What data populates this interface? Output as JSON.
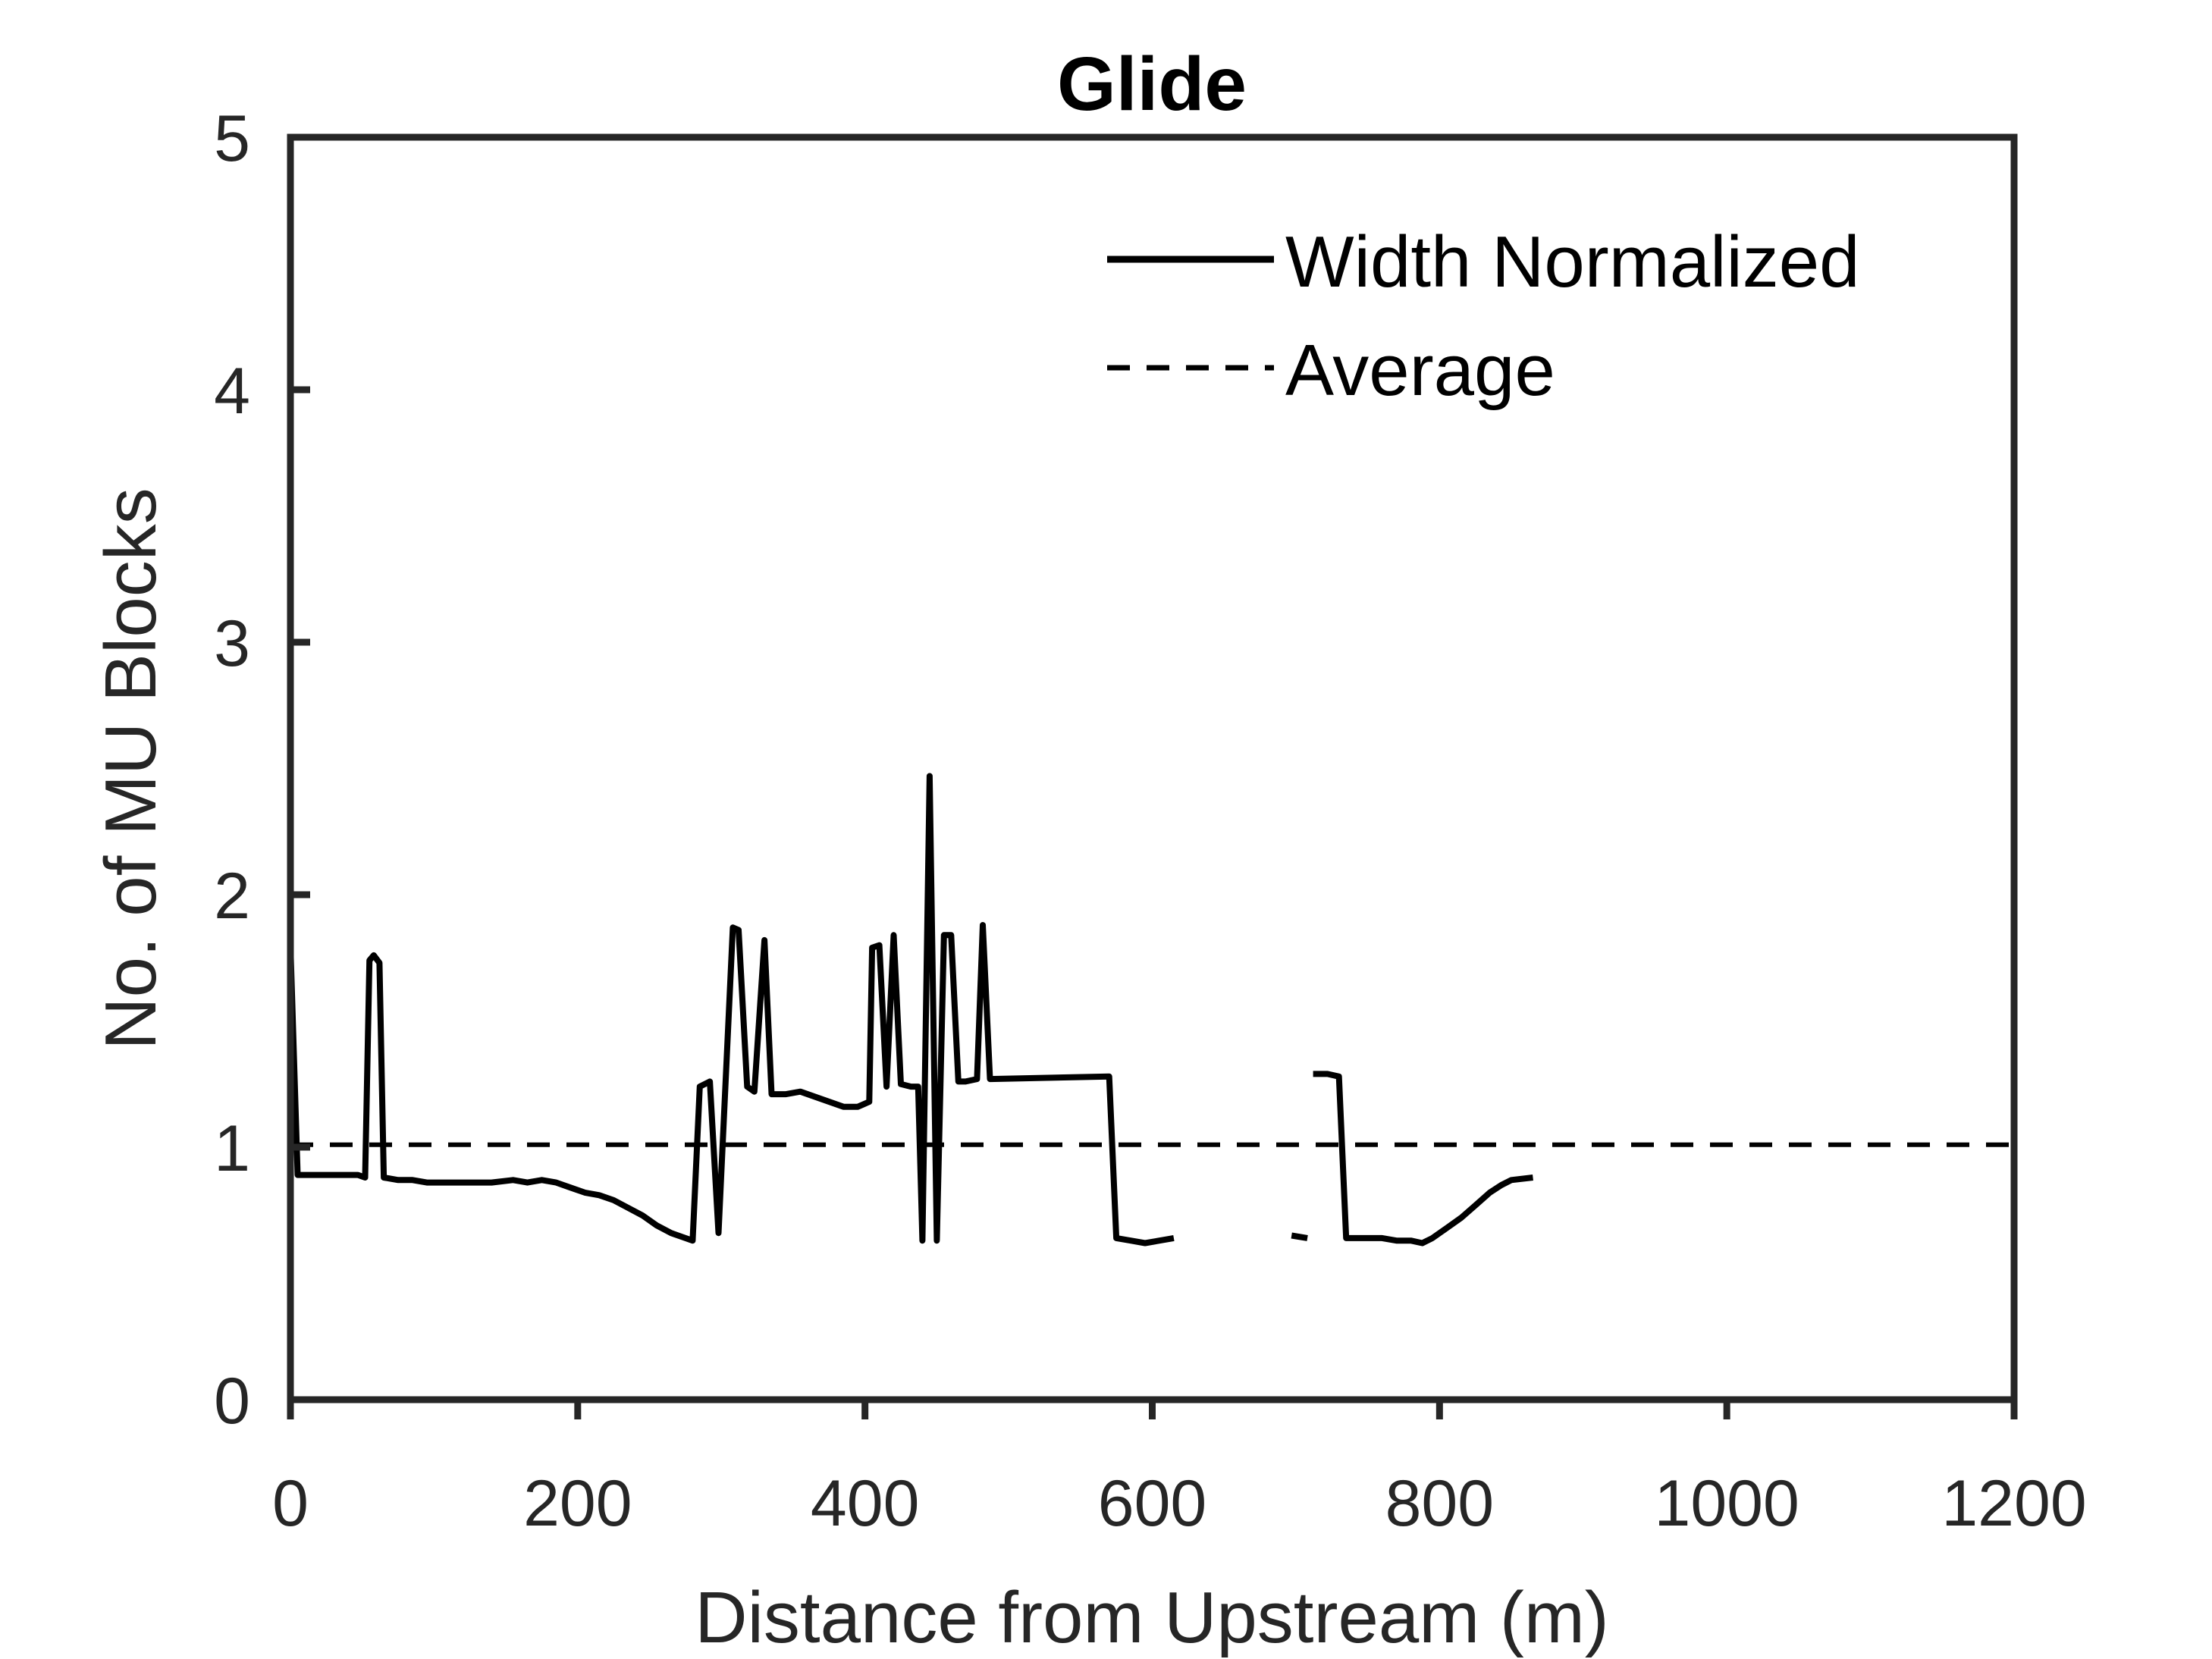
{
  "chart_data": {
    "type": "line",
    "title": "Glide",
    "xlabel": "Distance from Upstream (m)",
    "ylabel": "No. of MU Blocks",
    "xlim": [
      0,
      1200
    ],
    "ylim": [
      0,
      5
    ],
    "xticks": [
      0,
      200,
      400,
      600,
      800,
      1000,
      1200
    ],
    "yticks": [
      0,
      1,
      2,
      3,
      4,
      5
    ],
    "grid": false,
    "legend_position": "top-right",
    "colors": {
      "line": "#000000",
      "axis": "#262626"
    },
    "series": [
      {
        "name": "Width Normalized",
        "style": "solid",
        "segments": [
          [
            [
              0,
              1.8
            ],
            [
              5,
              0.89
            ],
            [
              20,
              0.89
            ],
            [
              35,
              0.89
            ],
            [
              47,
              0.89
            ],
            [
              52,
              0.88
            ],
            [
              55,
              1.74
            ],
            [
              58,
              1.76
            ],
            [
              62,
              1.73
            ],
            [
              65,
              0.88
            ],
            [
              75,
              0.87
            ],
            [
              85,
              0.87
            ],
            [
              95,
              0.86
            ],
            [
              110,
              0.86
            ],
            [
              125,
              0.86
            ],
            [
              140,
              0.86
            ],
            [
              155,
              0.87
            ],
            [
              165,
              0.86
            ],
            [
              175,
              0.87
            ],
            [
              185,
              0.86
            ],
            [
              195,
              0.84
            ],
            [
              205,
              0.82
            ],
            [
              215,
              0.81
            ],
            [
              225,
              0.79
            ],
            [
              235,
              0.76
            ],
            [
              245,
              0.73
            ],
            [
              255,
              0.69
            ],
            [
              265,
              0.66
            ],
            [
              275,
              0.64
            ],
            [
              280,
              0.63
            ],
            [
              285,
              1.24
            ],
            [
              292,
              1.26
            ],
            [
              298,
              0.66
            ],
            [
              308,
              1.87
            ],
            [
              312,
              1.86
            ],
            [
              318,
              1.24
            ],
            [
              323,
              1.22
            ],
            [
              330,
              1.82
            ],
            [
              335,
              1.21
            ],
            [
              345,
              1.21
            ],
            [
              355,
              1.22
            ],
            [
              370,
              1.19
            ],
            [
              385,
              1.16
            ],
            [
              395,
              1.16
            ],
            [
              403,
              1.18
            ],
            [
              405,
              1.79
            ],
            [
              410,
              1.8
            ],
            [
              415,
              1.24
            ],
            [
              420,
              1.84
            ],
            [
              425,
              1.25
            ],
            [
              432,
              1.24
            ],
            [
              437,
              1.24
            ],
            [
              440,
              0.63
            ],
            [
              445,
              2.47
            ],
            [
              450,
              0.63
            ],
            [
              455,
              1.84
            ],
            [
              460,
              1.84
            ],
            [
              465,
              1.26
            ],
            [
              470,
              1.26
            ],
            [
              478,
              1.27
            ],
            [
              482,
              1.88
            ],
            [
              487,
              1.27
            ],
            [
              570,
              1.28
            ],
            [
              575,
              0.64
            ],
            [
              585,
              0.63
            ],
            [
              595,
              0.62
            ],
            [
              605,
              0.63
            ],
            [
              615,
              0.64
            ]
          ],
          [
            [
              697,
              0.65
            ],
            [
              708,
              0.64
            ]
          ],
          [
            [
              712,
              1.29
            ],
            [
              722,
              1.29
            ],
            [
              730,
              1.28
            ],
            [
              735,
              0.64
            ],
            [
              745,
              0.64
            ],
            [
              760,
              0.64
            ],
            [
              770,
              0.63
            ],
            [
              780,
              0.63
            ],
            [
              788,
              0.62
            ],
            [
              795,
              0.64
            ],
            [
              805,
              0.68
            ],
            [
              815,
              0.72
            ],
            [
              825,
              0.77
            ],
            [
              835,
              0.82
            ],
            [
              843,
              0.85
            ],
            [
              850,
              0.87
            ],
            [
              865,
              0.88
            ]
          ]
        ]
      },
      {
        "name": "Average",
        "style": "dashed",
        "segments": [
          [
            [
              0,
              1.01
            ],
            [
              1200,
              1.01
            ]
          ]
        ]
      }
    ]
  }
}
